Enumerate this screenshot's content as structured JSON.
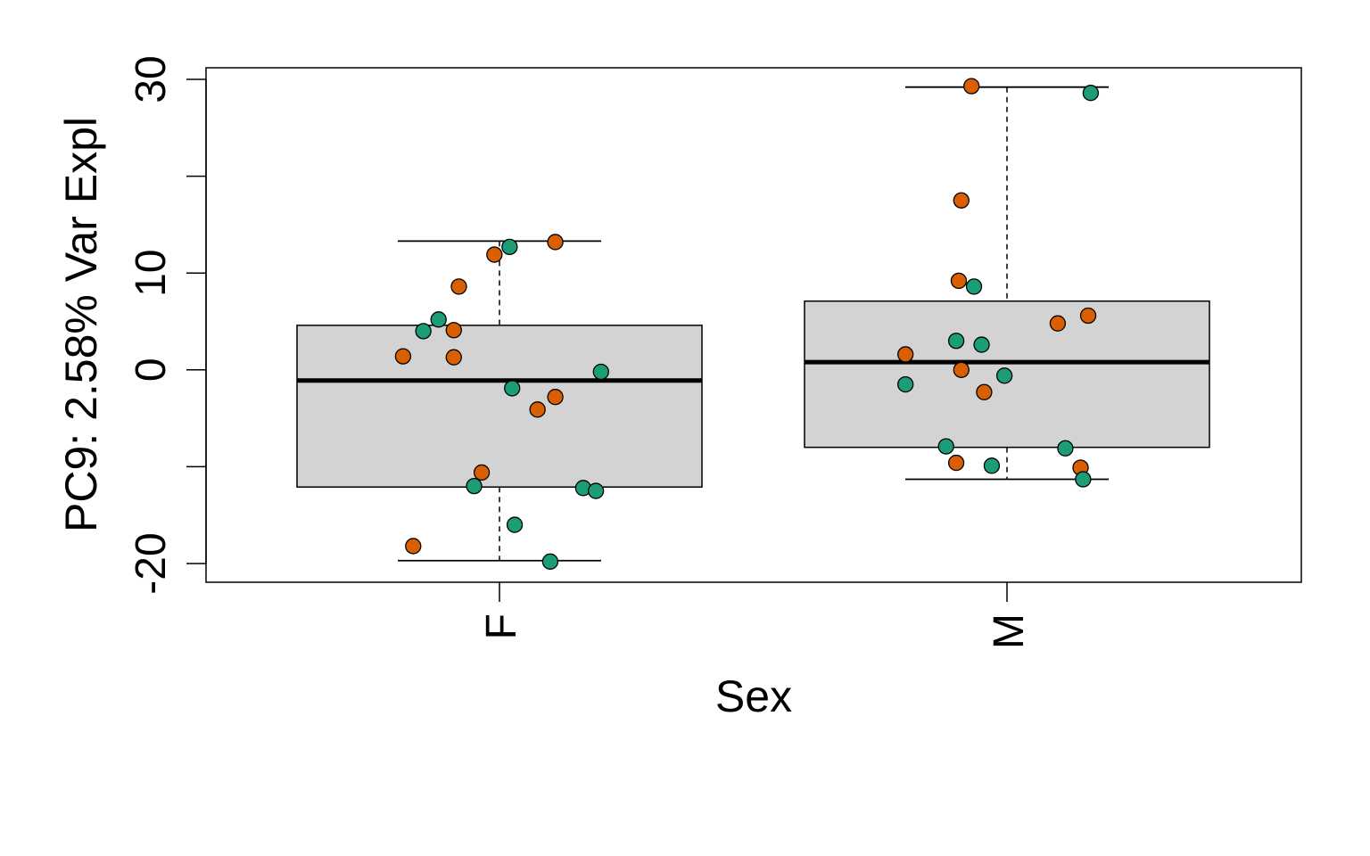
{
  "chart_data": {
    "type": "boxplot",
    "xlabel": "Sex",
    "ylabel": "PC9: 2.58% Var Expl",
    "categories": [
      "F",
      "M"
    ],
    "ylim": [
      -22,
      31
    ],
    "yticks": [
      -20,
      -10,
      0,
      10,
      20,
      30
    ],
    "ytick_labels": [
      "-20",
      "",
      "0",
      "10",
      "",
      "30"
    ],
    "box_fill": "#d3d3d3",
    "point_colors": {
      "orange": "#d95f02",
      "green": "#1b9e77"
    },
    "boxes": [
      {
        "category": "F",
        "whisker_low": -19.7,
        "q1": -12.1,
        "median": -1.1,
        "q3": 4.6,
        "whisker_high": 13.3
      },
      {
        "category": "M",
        "whisker_low": -11.3,
        "q1": -8.0,
        "median": 0.8,
        "q3": 7.1,
        "whisker_high": 29.2
      }
    ],
    "points": [
      {
        "category": "F",
        "x_offset": -0.19,
        "y": 1.4,
        "color": "orange"
      },
      {
        "category": "F",
        "x_offset": -0.15,
        "y": 4.0,
        "color": "green"
      },
      {
        "category": "F",
        "x_offset": -0.12,
        "y": 5.2,
        "color": "green"
      },
      {
        "category": "F",
        "x_offset": -0.09,
        "y": 1.3,
        "color": "orange"
      },
      {
        "category": "F",
        "x_offset": -0.09,
        "y": 4.1,
        "color": "orange"
      },
      {
        "category": "F",
        "x_offset": -0.08,
        "y": 8.6,
        "color": "orange"
      },
      {
        "category": "F",
        "x_offset": -0.01,
        "y": 11.9,
        "color": "orange"
      },
      {
        "category": "F",
        "x_offset": 0.02,
        "y": 12.7,
        "color": "green"
      },
      {
        "category": "F",
        "x_offset": 0.11,
        "y": 13.2,
        "color": "orange"
      },
      {
        "category": "F",
        "x_offset": 0.2,
        "y": -0.2,
        "color": "green"
      },
      {
        "category": "F",
        "x_offset": 0.025,
        "y": -1.9,
        "color": "green"
      },
      {
        "category": "F",
        "x_offset": 0.11,
        "y": -2.8,
        "color": "orange"
      },
      {
        "category": "F",
        "x_offset": 0.075,
        "y": -4.1,
        "color": "orange"
      },
      {
        "category": "F",
        "x_offset": -0.035,
        "y": -10.6,
        "color": "orange"
      },
      {
        "category": "F",
        "x_offset": -0.05,
        "y": -12.0,
        "color": "green"
      },
      {
        "category": "F",
        "x_offset": 0.165,
        "y": -12.2,
        "color": "green"
      },
      {
        "category": "F",
        "x_offset": 0.19,
        "y": -12.5,
        "color": "green"
      },
      {
        "category": "F",
        "x_offset": 0.03,
        "y": -16.0,
        "color": "green"
      },
      {
        "category": "F",
        "x_offset": -0.17,
        "y": -18.2,
        "color": "orange"
      },
      {
        "category": "F",
        "x_offset": 0.1,
        "y": -19.8,
        "color": "green"
      },
      {
        "category": "M",
        "x_offset": -0.07,
        "y": 29.3,
        "color": "orange"
      },
      {
        "category": "M",
        "x_offset": 0.165,
        "y": 28.6,
        "color": "green"
      },
      {
        "category": "M",
        "x_offset": -0.09,
        "y": 17.5,
        "color": "orange"
      },
      {
        "category": "M",
        "x_offset": -0.095,
        "y": 9.2,
        "color": "orange"
      },
      {
        "category": "M",
        "x_offset": -0.065,
        "y": 8.6,
        "color": "green"
      },
      {
        "category": "M",
        "x_offset": 0.1,
        "y": 4.8,
        "color": "orange"
      },
      {
        "category": "M",
        "x_offset": 0.16,
        "y": 5.6,
        "color": "orange"
      },
      {
        "category": "M",
        "x_offset": -0.1,
        "y": 3.0,
        "color": "green"
      },
      {
        "category": "M",
        "x_offset": -0.05,
        "y": 2.6,
        "color": "green"
      },
      {
        "category": "M",
        "x_offset": -0.2,
        "y": 1.6,
        "color": "orange"
      },
      {
        "category": "M",
        "x_offset": -0.09,
        "y": 0.0,
        "color": "orange"
      },
      {
        "category": "M",
        "x_offset": -0.005,
        "y": -0.6,
        "color": "green"
      },
      {
        "category": "M",
        "x_offset": -0.2,
        "y": -1.5,
        "color": "green"
      },
      {
        "category": "M",
        "x_offset": -0.045,
        "y": -2.3,
        "color": "orange"
      },
      {
        "category": "M",
        "x_offset": -0.12,
        "y": -7.9,
        "color": "green"
      },
      {
        "category": "M",
        "x_offset": 0.115,
        "y": -8.1,
        "color": "green"
      },
      {
        "category": "M",
        "x_offset": -0.1,
        "y": -9.6,
        "color": "orange"
      },
      {
        "category": "M",
        "x_offset": -0.03,
        "y": -9.9,
        "color": "green"
      },
      {
        "category": "M",
        "x_offset": 0.145,
        "y": -10.1,
        "color": "orange"
      },
      {
        "category": "M",
        "x_offset": 0.15,
        "y": -11.3,
        "color": "green"
      }
    ]
  }
}
